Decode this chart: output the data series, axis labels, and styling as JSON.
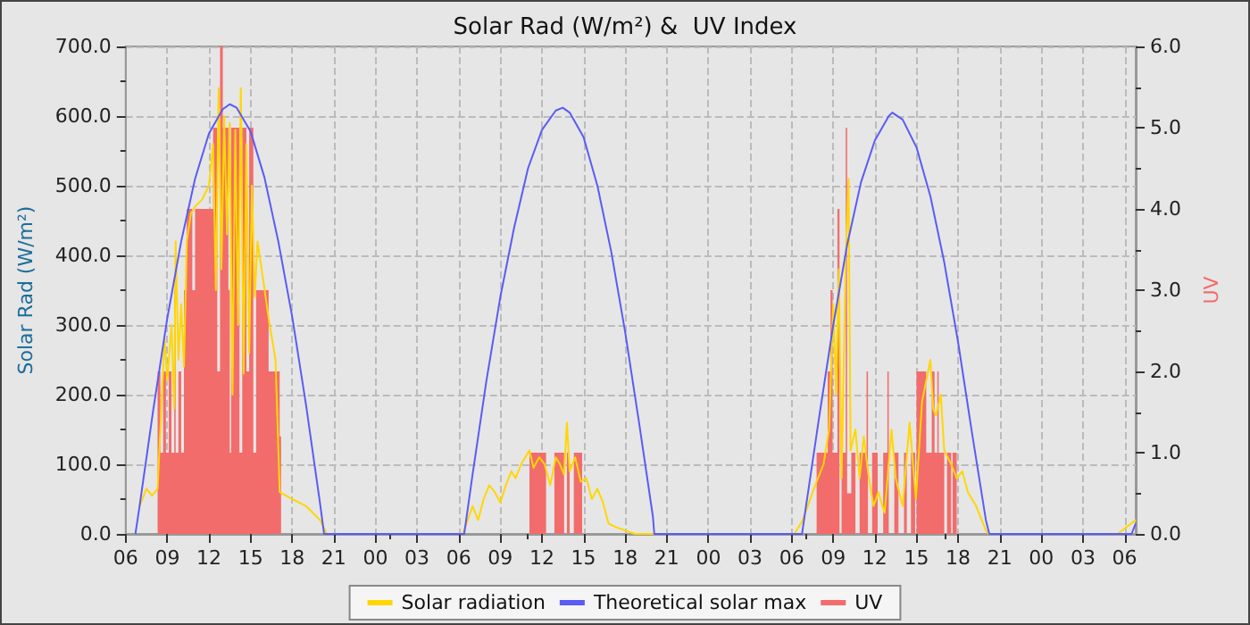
{
  "chart_data": {
    "type": "line",
    "title": "Solar Rad (W/m²) &  UV Index",
    "ylabel": "Solar Rad (W/m²)",
    "y2label": "UV",
    "xlim": [
      6,
      78.8
    ],
    "xticks": [
      {
        "value": 6,
        "label": "06"
      },
      {
        "value": 9,
        "label": "09"
      },
      {
        "value": 12,
        "label": "12"
      },
      {
        "value": 15,
        "label": "15"
      },
      {
        "value": 18,
        "label": "18"
      },
      {
        "value": 21,
        "label": "21"
      },
      {
        "value": 24,
        "label": "00"
      },
      {
        "value": 27,
        "label": "03"
      },
      {
        "value": 30,
        "label": "06"
      },
      {
        "value": 33,
        "label": "09"
      },
      {
        "value": 36,
        "label": "12"
      },
      {
        "value": 39,
        "label": "15"
      },
      {
        "value": 42,
        "label": "18"
      },
      {
        "value": 45,
        "label": "21"
      },
      {
        "value": 48,
        "label": "00"
      },
      {
        "value": 51,
        "label": "03"
      },
      {
        "value": 54,
        "label": "06"
      },
      {
        "value": 57,
        "label": "09"
      },
      {
        "value": 60,
        "label": "12"
      },
      {
        "value": 63,
        "label": "15"
      },
      {
        "value": 66,
        "label": "18"
      },
      {
        "value": 69,
        "label": "21"
      },
      {
        "value": 72,
        "label": "00"
      },
      {
        "value": 75,
        "label": "03"
      },
      {
        "value": 78,
        "label": "06"
      }
    ],
    "ylim": [
      0,
      700
    ],
    "yticks": [
      {
        "value": 0,
        "label": "0.0"
      },
      {
        "value": 100,
        "label": "100.0"
      },
      {
        "value": 200,
        "label": "200.0"
      },
      {
        "value": 300,
        "label": "300.0"
      },
      {
        "value": 400,
        "label": "400.0"
      },
      {
        "value": 500,
        "label": "500.0"
      },
      {
        "value": 600,
        "label": "600.0"
      },
      {
        "value": 700,
        "label": "700.0"
      }
    ],
    "y2lim": [
      0,
      6
    ],
    "y2ticks": [
      {
        "value": 0,
        "label": "0.0"
      },
      {
        "value": 1,
        "label": "1.0"
      },
      {
        "value": 2,
        "label": "2.0"
      },
      {
        "value": 3,
        "label": "3.0"
      },
      {
        "value": 4,
        "label": "4.0"
      },
      {
        "value": 5,
        "label": "5.0"
      },
      {
        "value": 6,
        "label": "6.0"
      }
    ],
    "grid": true,
    "legend": "bottom",
    "marker": "none",
    "series": [
      {
        "name": "Solar radiation",
        "color": "#ffd700",
        "x": [
          7,
          7.5,
          7.9,
          8.3,
          8.5,
          8.8,
          9,
          9.3,
          9.5,
          9.6,
          9.8,
          10,
          10.2,
          10.4,
          10.7,
          11,
          11.5,
          12,
          12.3,
          12.5,
          12.7,
          12.9,
          13.1,
          13.3,
          13.5,
          13.7,
          13.9,
          14.1,
          14.3,
          14.5,
          14.7,
          14.9,
          15.1,
          15.3,
          15.5,
          15.8,
          16.3,
          16.8,
          17.1,
          18,
          19,
          20,
          20.5,
          30.3,
          31,
          31.4,
          31.8,
          32.2,
          32.6,
          33,
          33.4,
          33.8,
          34.1,
          34.5,
          34.8,
          35.1,
          35.4,
          35.8,
          36.2,
          36.6,
          37,
          37.3,
          37.6,
          37.8,
          38,
          38.4,
          38.8,
          39.2,
          39.6,
          40,
          40.4,
          40.8,
          41.3,
          42,
          42.7,
          54.2,
          54.8,
          55.7,
          56.3,
          56.7,
          57,
          57.2,
          57.4,
          57.6,
          57.9,
          58.1,
          58.25,
          58.6,
          58.9,
          59.2,
          59.5,
          59.9,
          60.25,
          60.7,
          61.2,
          61.5,
          62,
          62.5,
          62.96,
          63.4,
          63.7,
          64,
          64.2,
          64.4,
          64.75,
          65,
          65.5,
          65.9,
          66.3,
          66.7,
          67.3,
          68,
          68.2,
          77.5,
          78.8
        ],
        "values": [
          40,
          65,
          55,
          65,
          150,
          280,
          220,
          300,
          180,
          420,
          250,
          330,
          240,
          420,
          460,
          470,
          480,
          500,
          560,
          350,
          640,
          380,
          600,
          430,
          590,
          200,
          580,
          300,
          640,
          230,
          560,
          260,
          500,
          340,
          420,
          380,
          310,
          250,
          60,
          50,
          40,
          20,
          0,
          0,
          40,
          20,
          50,
          70,
          60,
          45,
          70,
          90,
          80,
          100,
          110,
          120,
          95,
          110,
          100,
          70,
          110,
          100,
          85,
          160,
          90,
          110,
          75,
          80,
          50,
          65,
          45,
          15,
          10,
          5,
          0,
          0,
          20,
          70,
          100,
          150,
          330,
          200,
          380,
          80,
          400,
          510,
          120,
          150,
          80,
          140,
          90,
          40,
          60,
          30,
          150,
          80,
          40,
          160,
          50,
          190,
          220,
          250,
          180,
          170,
          200,
          120,
          100,
          80,
          90,
          60,
          40,
          5,
          0,
          0,
          20
        ]
      },
      {
        "name": "Theoretical solar max",
        "color": "#5b5bf5",
        "x": [
          6.7,
          7,
          8,
          9,
          10,
          11,
          12,
          13,
          13.5,
          14,
          15,
          16,
          17,
          18,
          19,
          20,
          20.3,
          30.4,
          31,
          32,
          33,
          34,
          35,
          36,
          37,
          37.5,
          38,
          39,
          40,
          41,
          42,
          43,
          44,
          44.1,
          54.75,
          55,
          56,
          57,
          58,
          59,
          60,
          61,
          61.25,
          62,
          63,
          64,
          65,
          66,
          67,
          68,
          68.25,
          78.5,
          78.8
        ],
        "values": [
          0,
          40,
          180,
          310,
          420,
          510,
          575,
          610,
          617,
          612,
          578,
          512,
          420,
          312,
          185,
          45,
          0,
          0,
          85,
          220,
          340,
          440,
          525,
          580,
          608,
          612,
          605,
          570,
          500,
          405,
          290,
          160,
          25,
          0,
          0,
          35,
          170,
          300,
          415,
          505,
          565,
          600,
          605,
          595,
          555,
          485,
          390,
          275,
          145,
          20,
          0,
          0,
          15
        ]
      },
      {
        "name": "UV",
        "type": "area",
        "axis": "y2",
        "color": "#f26c6c",
        "x": [
          7,
          8.3,
          8.5,
          8.7,
          8.9,
          9.1,
          9.3,
          9.5,
          9.6,
          9.8,
          10,
          10.2,
          10.4,
          10.8,
          11,
          12.3,
          12.6,
          12.8,
          13,
          13.4,
          13.5,
          13.6,
          14.2,
          14.4,
          14.7,
          14.9,
          15.2,
          15.4,
          16.3,
          17.1,
          17.2,
          35.1,
          36.3,
          36.9,
          37.6,
          37.8,
          38,
          38.3,
          38.9,
          55.8,
          56.6,
          56.8,
          56.95,
          57.3,
          57.45,
          57.6,
          57.9,
          58,
          58.3,
          58.6,
          58.9,
          59.4,
          59.5,
          59.8,
          60.2,
          60.6,
          60.9,
          61,
          61.4,
          61.7,
          62.1,
          62.3,
          62.6,
          62.9,
          63,
          63.7,
          64.1,
          64.3,
          64.5,
          64.6,
          65,
          65.2,
          65.5,
          65.6,
          65.9,
          78.8
        ],
        "values": [
          0,
          2,
          1,
          2,
          1,
          2,
          1,
          3,
          1,
          2,
          1,
          3,
          4,
          3,
          4,
          5,
          2,
          6,
          5,
          3,
          1,
          5,
          1,
          5,
          2,
          5,
          1,
          3,
          2,
          1.2,
          0,
          1,
          0,
          1,
          0,
          1,
          0,
          1,
          0,
          1,
          2,
          3,
          1,
          4,
          0,
          1,
          5,
          0.5,
          1,
          0,
          1,
          2,
          0,
          1,
          0,
          1,
          2,
          0,
          1,
          0,
          1,
          0,
          1,
          0,
          2,
          1,
          2,
          1,
          2,
          1,
          0,
          1,
          0,
          1,
          0,
          0
        ]
      }
    ]
  }
}
